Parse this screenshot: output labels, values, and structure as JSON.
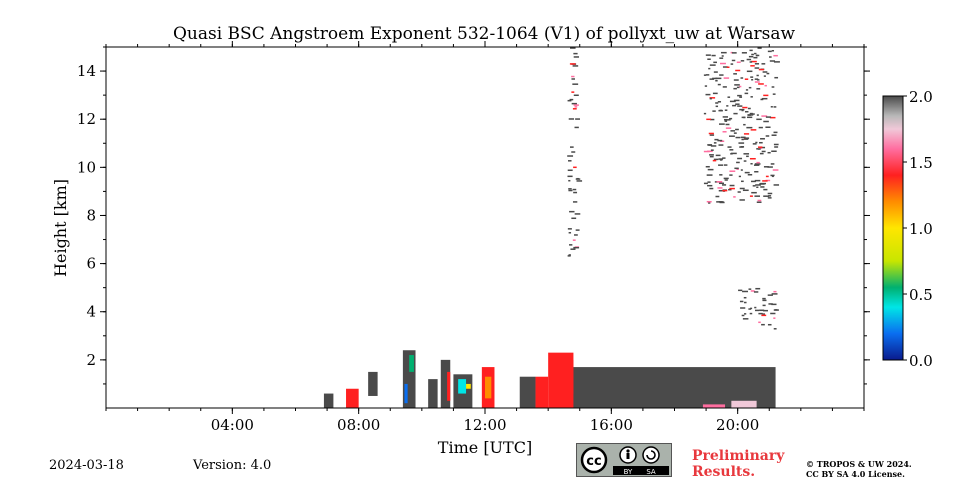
{
  "title": "Quasi BSC Angstroem Exponent 532-1064 (V1) of pollyxt_uw at Warsaw",
  "footer": {
    "date": "2024-03-18",
    "version": "Version: 4.0",
    "preliminary_line1": "Preliminary",
    "preliminary_line2": "Results.",
    "license_line1": "© TROPOS & UW 2024.",
    "license_line2": "CC BY SA 4.0 License.",
    "cc_badge": {
      "by": "BY",
      "sa": "SA",
      "cc": "cc"
    }
  },
  "chart_data": {
    "type": "heatmap",
    "title": "Quasi BSC Angstroem Exponent 532-1064 (V1) of pollyxt_uw at Warsaw",
    "xlabel": "Time [UTC]",
    "ylabel": "Height [km]",
    "xlim_hours": [
      0,
      24
    ],
    "ylim_km": [
      0,
      15
    ],
    "x_ticks": [
      {
        "value": 4,
        "label": "04:00"
      },
      {
        "value": 8,
        "label": "08:00"
      },
      {
        "value": 12,
        "label": "12:00"
      },
      {
        "value": 16,
        "label": "16:00"
      },
      {
        "value": 20,
        "label": "20:00"
      }
    ],
    "y_ticks": [
      {
        "value": 2,
        "label": "2"
      },
      {
        "value": 4,
        "label": "4"
      },
      {
        "value": 6,
        "label": "6"
      },
      {
        "value": 8,
        "label": "8"
      },
      {
        "value": 10,
        "label": "10"
      },
      {
        "value": 12,
        "label": "12"
      },
      {
        "value": 14,
        "label": "14"
      }
    ],
    "colorbar": {
      "range": [
        0.0,
        2.0
      ],
      "ticks": [
        {
          "value": 0.0,
          "label": "0.0"
        },
        {
          "value": 0.5,
          "label": "0.5"
        },
        {
          "value": 1.0,
          "label": "1.0"
        },
        {
          "value": 1.5,
          "label": "1.5"
        },
        {
          "value": 2.0,
          "label": "2.0"
        }
      ],
      "stops": [
        {
          "v": 0.0,
          "color": "#0a1a8c"
        },
        {
          "v": 0.2,
          "color": "#0a6ef0"
        },
        {
          "v": 0.4,
          "color": "#00e6e6"
        },
        {
          "v": 0.55,
          "color": "#00b070"
        },
        {
          "v": 0.75,
          "color": "#c8e600"
        },
        {
          "v": 1.0,
          "color": "#ffe600"
        },
        {
          "v": 1.2,
          "color": "#ff8c00"
        },
        {
          "v": 1.4,
          "color": "#ff2020"
        },
        {
          "v": 1.6,
          "color": "#ff6ea0"
        },
        {
          "v": 1.75,
          "color": "#f0c8d8"
        },
        {
          "v": 1.85,
          "color": "#b8b8b8"
        },
        {
          "v": 2.0,
          "color": "#4a4a4a"
        }
      ]
    },
    "regions": [
      {
        "name": "lower-layer-dense",
        "t_start": 14.2,
        "t_end": 21.2,
        "h_bottom": 0.0,
        "h_top": 1.7,
        "value": 2.0
      },
      {
        "name": "sharp-rise-14h",
        "t_start": 14.0,
        "t_end": 14.8,
        "h_bottom": 0.0,
        "h_top": 2.3,
        "value": 1.3
      },
      {
        "name": "early-column-07h",
        "t_start": 6.9,
        "t_end": 7.2,
        "h_bottom": 0.0,
        "h_top": 0.6,
        "value": 1.9
      },
      {
        "name": "cirrus-19h-20h",
        "t_start": 18.9,
        "t_end": 21.2,
        "h_bottom": 8.5,
        "h_top": 15.0,
        "value": 1.9
      },
      {
        "name": "mid-aerosol-21h",
        "t_start": 20.0,
        "t_end": 21.2,
        "h_bottom": 3.3,
        "h_top": 5.0,
        "value": 1.9
      },
      {
        "name": "vertical-column-15h",
        "t_start": 14.6,
        "t_end": 14.9,
        "h_bottom": 6.3,
        "h_top": 15.0,
        "value": 1.9
      }
    ]
  }
}
